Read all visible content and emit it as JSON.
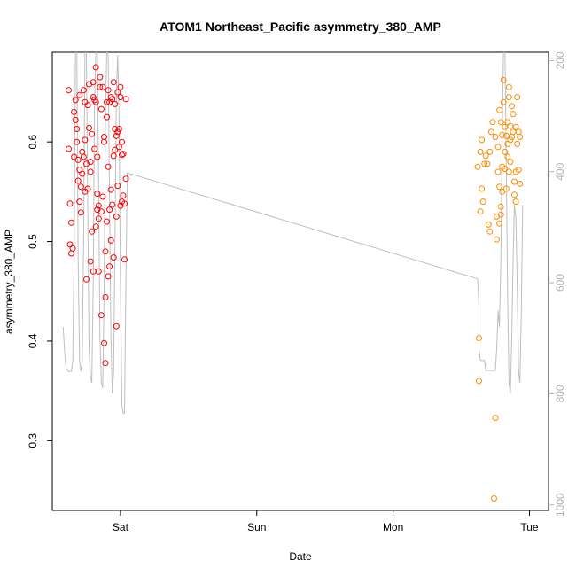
{
  "chart_data": {
    "type": "scatter",
    "title": "ATOM1 Northeast_Pacific asymmetry_380_AMP",
    "xlabel": "Date",
    "ylabel": "asymmetry_380_AMP",
    "x_ticks": [
      {
        "label": "Sat",
        "day": 1.0
      },
      {
        "label": "Sun",
        "day": 2.0
      },
      {
        "label": "Mon",
        "day": 3.0
      },
      {
        "label": "Tue",
        "day": 4.0
      }
    ],
    "xlim_days": [
      0.5,
      4.14
    ],
    "ylim": [
      0.23,
      0.69
    ],
    "y_ticks": [
      0.3,
      0.4,
      0.5,
      0.6
    ],
    "y2_ticks": [
      200,
      400,
      600,
      800,
      1000
    ],
    "y2lim": [
      1010,
      185
    ],
    "grid": false,
    "colors": {
      "series_1": "#ff0000",
      "series_2": "#ff8c00",
      "depth_line": "#bebebe"
    },
    "series": [
      {
        "color": "#ff0000",
        "points": [
          [
            0.62,
            0.652
          ],
          [
            0.62,
            0.593
          ],
          [
            0.63,
            0.538
          ],
          [
            0.63,
            0.497
          ],
          [
            0.64,
            0.488
          ],
          [
            0.64,
            0.519
          ],
          [
            0.65,
            0.493
          ],
          [
            0.66,
            0.585
          ],
          [
            0.67,
            0.622
          ],
          [
            0.67,
            0.642
          ],
          [
            0.68,
            0.6
          ],
          [
            0.68,
            0.613
          ],
          [
            0.69,
            0.561
          ],
          [
            0.69,
            0.582
          ],
          [
            0.7,
            0.647
          ],
          [
            0.7,
            0.54
          ],
          [
            0.71,
            0.529
          ],
          [
            0.71,
            0.555
          ],
          [
            0.72,
            0.568
          ],
          [
            0.73,
            0.652
          ],
          [
            0.73,
            0.585
          ],
          [
            0.74,
            0.602
          ],
          [
            0.74,
            0.55
          ],
          [
            0.75,
            0.462
          ],
          [
            0.75,
            0.578
          ],
          [
            0.76,
            0.637
          ],
          [
            0.77,
            0.658
          ],
          [
            0.77,
            0.614
          ],
          [
            0.78,
            0.57
          ],
          [
            0.78,
            0.58
          ],
          [
            0.79,
            0.608
          ],
          [
            0.79,
            0.51
          ],
          [
            0.8,
            0.645
          ],
          [
            0.8,
            0.66
          ],
          [
            0.81,
            0.642
          ],
          [
            0.81,
            0.593
          ],
          [
            0.82,
            0.675
          ],
          [
            0.82,
            0.515
          ],
          [
            0.83,
            0.532
          ],
          [
            0.83,
            0.585
          ],
          [
            0.84,
            0.523
          ],
          [
            0.84,
            0.536
          ],
          [
            0.85,
            0.665
          ],
          [
            0.85,
            0.655
          ],
          [
            0.86,
            0.53
          ],
          [
            0.86,
            0.633
          ],
          [
            0.87,
            0.655
          ],
          [
            0.87,
            0.545
          ],
          [
            0.88,
            0.6
          ],
          [
            0.88,
            0.398
          ],
          [
            0.89,
            0.378
          ],
          [
            0.89,
            0.444
          ],
          [
            0.9,
            0.52
          ],
          [
            0.9,
            0.64
          ],
          [
            0.91,
            0.652
          ],
          [
            0.91,
            0.575
          ],
          [
            0.92,
            0.64
          ],
          [
            0.92,
            0.532
          ],
          [
            0.93,
            0.552
          ],
          [
            0.93,
            0.501
          ],
          [
            0.94,
            0.643
          ],
          [
            0.94,
            0.537
          ],
          [
            0.95,
            0.66
          ],
          [
            0.95,
            0.586
          ],
          [
            0.96,
            0.638
          ],
          [
            0.96,
            0.613
          ],
          [
            0.97,
            0.606
          ],
          [
            0.97,
            0.415
          ],
          [
            0.98,
            0.65
          ],
          [
            0.98,
            0.556
          ],
          [
            0.99,
            0.595
          ],
          [
            0.99,
            0.613
          ],
          [
            1.0,
            0.655
          ],
          [
            1.0,
            0.645
          ],
          [
            1.01,
            0.587
          ],
          [
            1.01,
            0.54
          ],
          [
            1.02,
            0.588
          ],
          [
            1.02,
            0.546
          ],
          [
            1.03,
            0.538
          ],
          [
            1.03,
            0.482
          ],
          [
            1.04,
            0.563
          ],
          [
            1.04,
            0.643
          ],
          [
            0.8,
            0.47
          ],
          [
            0.84,
            0.47
          ],
          [
            0.89,
            0.49
          ],
          [
            0.92,
            0.475
          ],
          [
            0.95,
            0.484
          ],
          [
            0.78,
            0.48
          ],
          [
            0.86,
            0.426
          ],
          [
            0.91,
            0.465
          ],
          [
            0.7,
            0.572
          ],
          [
            0.76,
            0.553
          ],
          [
            0.83,
            0.548
          ],
          [
            0.97,
            0.525
          ],
          [
            1.0,
            0.536
          ],
          [
            0.72,
            0.59
          ],
          [
            0.88,
            0.605
          ],
          [
            0.93,
            0.645
          ],
          [
            0.98,
            0.61
          ],
          [
            0.66,
            0.63
          ],
          [
            0.74,
            0.64
          ],
          [
            0.82,
            0.64
          ],
          [
            0.9,
            0.625
          ],
          [
            0.96,
            0.592
          ],
          [
            1.01,
            0.6
          ]
        ]
      },
      {
        "color": "#ff8c00",
        "points": [
          [
            3.62,
            0.575
          ],
          [
            3.63,
            0.403
          ],
          [
            3.63,
            0.36
          ],
          [
            3.64,
            0.59
          ],
          [
            3.64,
            0.53
          ],
          [
            3.65,
            0.602
          ],
          [
            3.65,
            0.553
          ],
          [
            3.66,
            0.54
          ],
          [
            3.67,
            0.578
          ],
          [
            3.68,
            0.586
          ],
          [
            3.69,
            0.578
          ],
          [
            3.7,
            0.517
          ],
          [
            3.71,
            0.59
          ],
          [
            3.71,
            0.51
          ],
          [
            3.72,
            0.61
          ],
          [
            3.73,
            0.62
          ],
          [
            3.74,
            0.242
          ],
          [
            3.75,
            0.605
          ],
          [
            3.75,
            0.323
          ],
          [
            3.76,
            0.525
          ],
          [
            3.76,
            0.502
          ],
          [
            3.77,
            0.595
          ],
          [
            3.78,
            0.632
          ],
          [
            3.78,
            0.555
          ],
          [
            3.79,
            0.62
          ],
          [
            3.79,
            0.527
          ],
          [
            3.8,
            0.607
          ],
          [
            3.8,
            0.575
          ],
          [
            3.81,
            0.64
          ],
          [
            3.81,
            0.662
          ],
          [
            3.82,
            0.573
          ],
          [
            3.82,
            0.615
          ],
          [
            3.83,
            0.606
          ],
          [
            3.84,
            0.598
          ],
          [
            3.84,
            0.585
          ],
          [
            3.85,
            0.655
          ],
          [
            3.85,
            0.645
          ],
          [
            3.86,
            0.616
          ],
          [
            3.86,
            0.58
          ],
          [
            3.87,
            0.636
          ],
          [
            3.87,
            0.605
          ],
          [
            3.88,
            0.61
          ],
          [
            3.89,
            0.547
          ],
          [
            3.89,
            0.56
          ],
          [
            3.9,
            0.57
          ],
          [
            3.9,
            0.615
          ],
          [
            3.91,
            0.645
          ],
          [
            3.91,
            0.598
          ],
          [
            3.92,
            0.61
          ],
          [
            3.92,
            0.572
          ],
          [
            3.93,
            0.558
          ],
          [
            3.93,
            0.605
          ],
          [
            3.8,
            0.55
          ],
          [
            3.79,
            0.535
          ],
          [
            3.78,
            0.518
          ],
          [
            3.82,
            0.59
          ],
          [
            3.84,
            0.62
          ],
          [
            3.86,
            0.602
          ],
          [
            3.88,
            0.628
          ],
          [
            3.9,
            0.54
          ],
          [
            3.77,
            0.57
          ],
          [
            3.83,
            0.553
          ],
          [
            3.85,
            0.57
          ]
        ]
      }
    ],
    "depth_line": [
      [
        0.58,
        680
      ],
      [
        0.59,
        720
      ],
      [
        0.6,
        753
      ],
      [
        0.62,
        760
      ],
      [
        0.64,
        760
      ],
      [
        0.65,
        740
      ],
      [
        0.66,
        560
      ],
      [
        0.67,
        180
      ],
      [
        0.68,
        180
      ],
      [
        0.69,
        560
      ],
      [
        0.7,
        740
      ],
      [
        0.71,
        760
      ],
      [
        0.72,
        740
      ],
      [
        0.73,
        520
      ],
      [
        0.74,
        180
      ],
      [
        0.75,
        180
      ],
      [
        0.76,
        460
      ],
      [
        0.77,
        720
      ],
      [
        0.78,
        770
      ],
      [
        0.79,
        780
      ],
      [
        0.8,
        600
      ],
      [
        0.81,
        280
      ],
      [
        0.82,
        180
      ],
      [
        0.83,
        180
      ],
      [
        0.84,
        420
      ],
      [
        0.85,
        700
      ],
      [
        0.86,
        780
      ],
      [
        0.87,
        790
      ],
      [
        0.88,
        620
      ],
      [
        0.89,
        300
      ],
      [
        0.9,
        180
      ],
      [
        0.91,
        190
      ],
      [
        0.92,
        450
      ],
      [
        0.93,
        700
      ],
      [
        0.94,
        800
      ],
      [
        0.95,
        760
      ],
      [
        0.96,
        520
      ],
      [
        0.97,
        260
      ],
      [
        0.98,
        190
      ],
      [
        0.99,
        300
      ],
      [
        1.0,
        600
      ],
      [
        1.01,
        820
      ],
      [
        1.02,
        835
      ],
      [
        1.03,
        835
      ],
      [
        1.04,
        600
      ],
      [
        1.05,
        402
      ],
      [
        3.62,
        593
      ],
      [
        3.63,
        640
      ],
      [
        3.63,
        720
      ],
      [
        3.64,
        740
      ],
      [
        3.66,
        740
      ],
      [
        3.67,
        740
      ],
      [
        3.68,
        758
      ],
      [
        3.7,
        758
      ],
      [
        3.72,
        758
      ],
      [
        3.74,
        758
      ],
      [
        3.75,
        758
      ],
      [
        3.76,
        720
      ],
      [
        3.77,
        650
      ],
      [
        3.78,
        680
      ],
      [
        3.79,
        560
      ],
      [
        3.8,
        330
      ],
      [
        3.81,
        180
      ],
      [
        3.82,
        180
      ],
      [
        3.83,
        380
      ],
      [
        3.84,
        620
      ],
      [
        3.85,
        780
      ],
      [
        3.86,
        800
      ],
      [
        3.87,
        700
      ],
      [
        3.88,
        560
      ],
      [
        3.89,
        460
      ],
      [
        3.9,
        480
      ],
      [
        3.91,
        600
      ],
      [
        3.92,
        760
      ],
      [
        3.93,
        780
      ],
      [
        3.94,
        660
      ],
      [
        3.95,
        460
      ]
    ]
  }
}
